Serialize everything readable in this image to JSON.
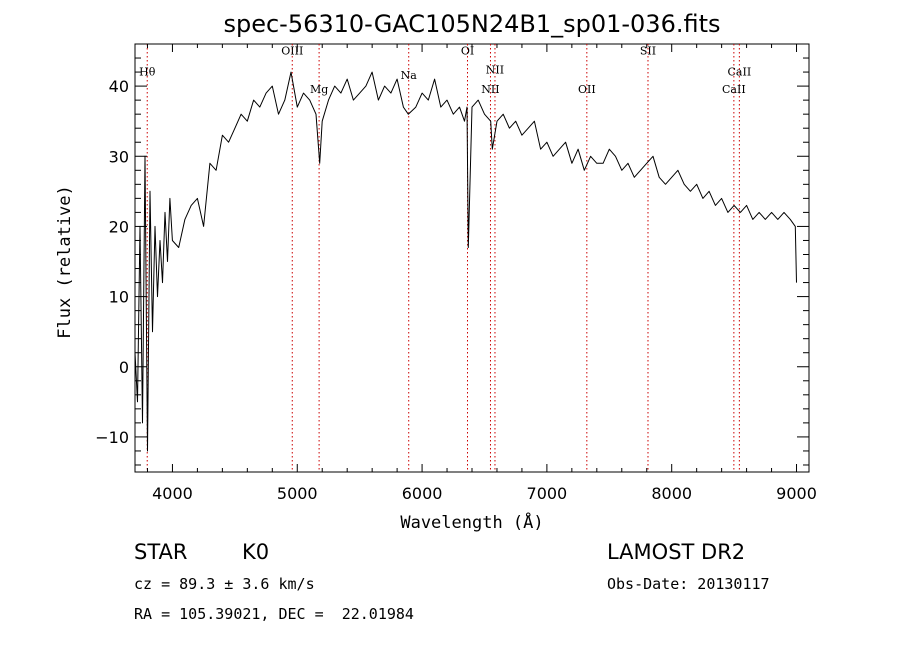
{
  "chart_data": {
    "type": "line",
    "title": "spec-56310-GAC105N24B1_sp01-036.fits",
    "xlabel": "Wavelength (Å)",
    "ylabel": "Flux (relative)",
    "xlim": [
      3700,
      9100
    ],
    "ylim": [
      -15,
      46
    ],
    "xticks": [
      4000,
      5000,
      6000,
      7000,
      8000,
      9000
    ],
    "yticks": [
      -10,
      0,
      10,
      20,
      30,
      40
    ],
    "grid": false,
    "series": [
      {
        "color": "#000000",
        "x": [
          3700,
          3720,
          3740,
          3760,
          3780,
          3800,
          3820,
          3840,
          3860,
          3880,
          3900,
          3920,
          3940,
          3960,
          3980,
          4000,
          4050,
          4100,
          4150,
          4200,
          4250,
          4300,
          4350,
          4400,
          4450,
          4500,
          4550,
          4600,
          4650,
          4700,
          4750,
          4800,
          4850,
          4900,
          4950,
          5000,
          5050,
          5100,
          5150,
          5180,
          5200,
          5250,
          5300,
          5350,
          5400,
          5450,
          5500,
          5550,
          5600,
          5650,
          5700,
          5750,
          5800,
          5850,
          5890,
          5950,
          6000,
          6050,
          6100,
          6150,
          6200,
          6250,
          6300,
          6340,
          6360,
          6370,
          6400,
          6450,
          6500,
          6550,
          6563,
          6600,
          6650,
          6700,
          6750,
          6800,
          6850,
          6900,
          6950,
          7000,
          7050,
          7100,
          7150,
          7200,
          7250,
          7300,
          7350,
          7400,
          7450,
          7500,
          7550,
          7600,
          7650,
          7700,
          7750,
          7800,
          7850,
          7900,
          7950,
          8000,
          8050,
          8100,
          8150,
          8200,
          8250,
          8300,
          8350,
          8400,
          8450,
          8500,
          8550,
          8600,
          8650,
          8700,
          8750,
          8800,
          8850,
          8900,
          8950,
          8990,
          9000
        ],
        "y": [
          2,
          -5,
          20,
          -8,
          30,
          -12,
          25,
          5,
          20,
          10,
          18,
          12,
          22,
          15,
          24,
          18,
          17,
          21,
          23,
          24,
          20,
          29,
          28,
          33,
          32,
          34,
          36,
          35,
          38,
          37,
          39,
          40,
          36,
          38,
          42,
          37,
          39,
          38,
          36,
          29,
          35,
          38,
          40,
          39,
          41,
          38,
          39,
          40,
          42,
          38,
          40,
          39,
          41,
          37,
          36,
          37,
          39,
          38,
          41,
          37,
          38,
          36,
          37,
          35,
          37,
          17,
          37,
          38,
          36,
          35,
          31,
          35,
          36,
          34,
          35,
          33,
          34,
          35,
          31,
          32,
          30,
          31,
          32,
          29,
          31,
          28,
          30,
          29,
          29,
          31,
          30,
          28,
          29,
          27,
          28,
          29,
          30,
          27,
          26,
          27,
          28,
          26,
          25,
          26,
          24,
          25,
          23,
          24,
          22,
          23,
          22,
          23,
          21,
          22,
          21,
          22,
          21,
          22,
          21,
          20,
          12
        ]
      }
    ],
    "spectral_lines": [
      {
        "label": "Hθ",
        "wavelength": 3798,
        "label_y": 41.5
      },
      {
        "label": "OIII",
        "wavelength": 4960,
        "label_y": 44.5
      },
      {
        "label": "Mg",
        "wavelength": 5175,
        "label_y": 39.0
      },
      {
        "label": "Na",
        "wavelength": 5893,
        "label_y": 41.0
      },
      {
        "label": "OI",
        "wavelength": 6364,
        "label_y": 44.5
      },
      {
        "label": "NII",
        "wavelength": 6548,
        "label_y": 39.0
      },
      {
        "label": "NII",
        "wavelength": 6584,
        "label_y": 41.8
      },
      {
        "label": "OII",
        "wavelength": 7320,
        "label_y": 39.0
      },
      {
        "label": "SII",
        "wavelength": 7810,
        "label_y": 44.5
      },
      {
        "label": "CaII",
        "wavelength": 8498,
        "label_y": 39.0
      },
      {
        "label": "CaII",
        "wavelength": 8542,
        "label_y": 41.5
      }
    ]
  },
  "info": {
    "object_class": "STAR",
    "subclass": "K0",
    "survey": "LAMOST DR2",
    "redshift": "cz = 89.3 ± 3.6 km/s",
    "obs_date": "Obs-Date: 20130117",
    "coordinates": "RA = 105.39021, DEC =  22.01984"
  }
}
